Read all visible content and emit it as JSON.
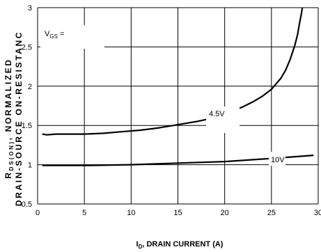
{
  "chart_data": {
    "type": "line",
    "xlabel_main": "I",
    "xlabel_sub": "D",
    "xlabel_rest": ", DRAIN CURRENT (A)",
    "ylabel_line1_main": "R",
    "ylabel_line1_sub": "DS(ON)",
    "ylabel_line1_rest": ", NORMALIZED",
    "ylabel_line2": "DRAIN-SOURCE ON-RESISTANC",
    "legend_title_main": "V",
    "legend_title_sub": "GS",
    "legend_title_rest": " =",
    "xlim": [
      0,
      30
    ],
    "ylim": [
      0.5,
      3
    ],
    "x_ticks": [
      "0",
      "5",
      "10",
      "15",
      "20",
      "25",
      "30"
    ],
    "y_ticks": [
      "0.5",
      "1",
      "1.5",
      "2",
      "2.5",
      "3"
    ],
    "grid": true,
    "series": [
      {
        "name": "4.5V",
        "x": [
          0.5,
          1,
          2,
          3,
          5,
          7,
          9,
          11,
          13,
          15,
          17,
          19,
          20,
          21,
          22,
          23,
          24,
          25,
          26,
          26.5,
          27,
          27.5,
          27.8,
          28.0,
          28.2,
          28.3
        ],
        "y": [
          1.39,
          1.38,
          1.39,
          1.39,
          1.39,
          1.4,
          1.42,
          1.44,
          1.47,
          1.51,
          1.55,
          1.6,
          1.64,
          1.69,
          1.74,
          1.8,
          1.87,
          1.96,
          2.1,
          2.2,
          2.34,
          2.52,
          2.66,
          2.8,
          2.92,
          3.0
        ]
      },
      {
        "name": "10V",
        "x": [
          0.5,
          5,
          10,
          15,
          20,
          25,
          29.5
        ],
        "y": [
          0.99,
          0.99,
          1.0,
          1.02,
          1.04,
          1.08,
          1.12
        ]
      }
    ]
  }
}
